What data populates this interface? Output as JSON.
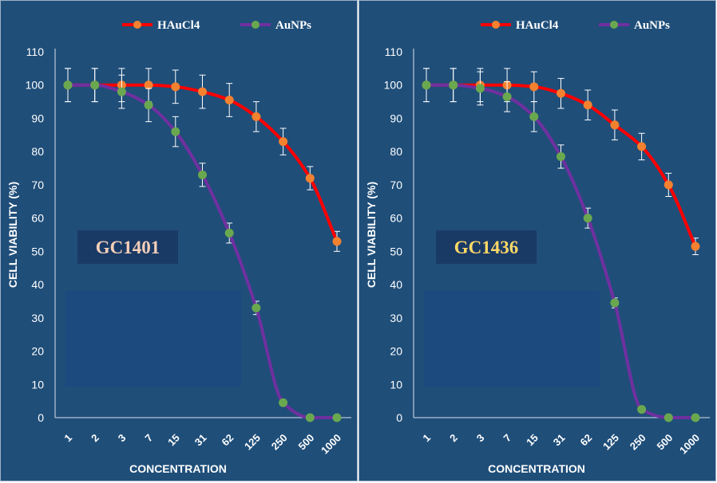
{
  "colors": {
    "background": "#1f4e79",
    "haucl4_line": "#ff0000",
    "haucl4_marker": "#f4812f",
    "aunps_line": "#7030a0",
    "aunps_marker": "#6aa84f",
    "badge_bg": "#1a3a66",
    "overlay_box": "#1c4a80",
    "text": "#ffffff"
  },
  "chart_data": [
    {
      "type": "line",
      "label_box": "GC1401",
      "label_color": "#f6d0b8",
      "xlabel": "CONCENTRATION",
      "ylabel": "CELL VIABILITY (%)",
      "categories": [
        "1",
        "2",
        "3",
        "7",
        "15",
        "31",
        "62",
        "125",
        "250",
        "500",
        "1000"
      ],
      "ylim": [
        0,
        110
      ],
      "yticks": [
        "0",
        "10",
        "20",
        "30",
        "40",
        "50",
        "60",
        "70",
        "80",
        "90",
        "100",
        "110"
      ],
      "legend_position": "top",
      "series": [
        {
          "name": "HAuCl4",
          "values": [
            100,
            100,
            100,
            100,
            99.5,
            98,
            95.5,
            90.5,
            83,
            72,
            53
          ],
          "errors": [
            5,
            5,
            5,
            5,
            5,
            5,
            5,
            4.5,
            4,
            3.5,
            3
          ]
        },
        {
          "name": "AuNPs",
          "values": [
            100,
            100,
            98,
            94,
            86,
            73,
            55.5,
            33,
            4.5,
            0,
            0
          ],
          "errors": [
            5,
            5,
            5,
            5,
            4.5,
            3.5,
            3,
            2,
            0,
            0,
            0
          ]
        }
      ]
    },
    {
      "type": "line",
      "label_box": "GC1436",
      "label_color": "#ffd966",
      "xlabel": "CONCENTRATION",
      "ylabel": "CELL VIABILITY (%)",
      "categories": [
        "1",
        "2",
        "3",
        "7",
        "15",
        "31",
        "62",
        "125",
        "250",
        "500",
        "1000"
      ],
      "ylim": [
        0,
        110
      ],
      "yticks": [
        "0",
        "10",
        "20",
        "30",
        "40",
        "50",
        "60",
        "70",
        "80",
        "90",
        "100",
        "110"
      ],
      "legend_position": "top",
      "series": [
        {
          "name": "HAuCl4",
          "values": [
            100,
            100,
            100,
            100,
            99.5,
            97.5,
            94,
            88,
            81.5,
            70,
            51.5
          ],
          "errors": [
            5,
            5,
            5,
            5,
            4.5,
            4.5,
            4.5,
            4.5,
            4,
            3.5,
            2.5
          ]
        },
        {
          "name": "AuNPs",
          "values": [
            100,
            100,
            99,
            96.5,
            90.5,
            78.5,
            60,
            34.5,
            2.5,
            0,
            0
          ],
          "errors": [
            5,
            5,
            5,
            4.5,
            4.5,
            3.5,
            3,
            1.5,
            0,
            0,
            0
          ]
        }
      ]
    }
  ]
}
